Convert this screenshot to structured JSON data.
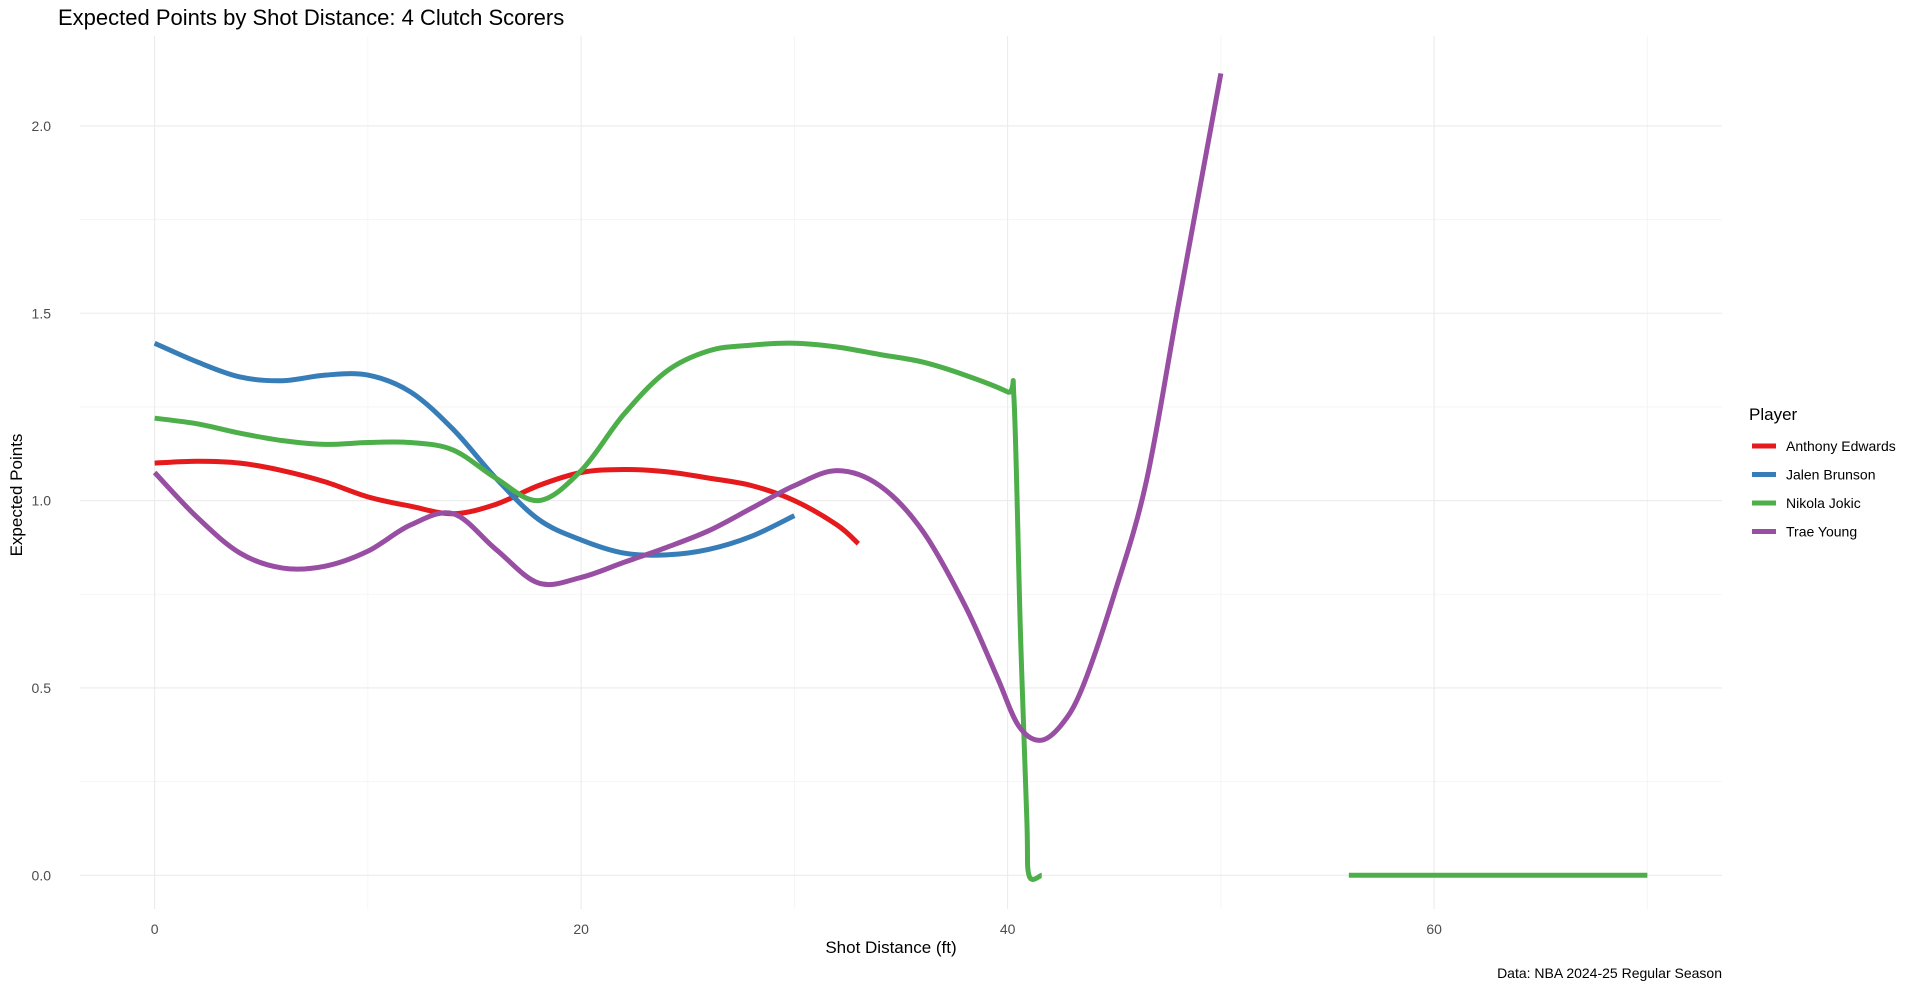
{
  "chart_data": {
    "type": "line",
    "title": "Expected Points by Shot Distance: 4 Clutch Scorers",
    "xlabel": "Shot Distance (ft)",
    "ylabel": "Expected Points",
    "caption": "Data: NBA 2024-25 Regular Season",
    "xlim": [
      -3.5,
      73.5
    ],
    "ylim": [
      -0.09,
      2.24
    ],
    "x_ticks": [
      0,
      20,
      40,
      60
    ],
    "y_ticks": [
      0.0,
      0.5,
      1.0,
      1.5,
      2.0
    ],
    "x_tick_labels": [
      "0",
      "20",
      "40",
      "60"
    ],
    "y_tick_labels": [
      "0.0",
      "0.5",
      "1.0",
      "1.5",
      "2.0"
    ],
    "grid": true,
    "legend": {
      "title": "Player",
      "position": "right"
    },
    "series": [
      {
        "name": "Anthony Edwards",
        "color": "#e41a1c",
        "segments": [
          {
            "x": [
              0,
              2,
              4,
              6,
              8,
              10,
              12,
              14,
              16,
              18,
              20,
              22,
              24,
              26,
              28,
              30,
              32,
              33
            ],
            "y": [
              1.1,
              1.105,
              1.1,
              1.08,
              1.05,
              1.01,
              0.985,
              0.965,
              0.99,
              1.04,
              1.075,
              1.083,
              1.077,
              1.06,
              1.04,
              1.0,
              0.935,
              0.885
            ]
          }
        ]
      },
      {
        "name": "Jalen Brunson",
        "color": "#377eb8",
        "segments": [
          {
            "x": [
              0,
              2,
              4,
              6,
              8,
              10,
              12,
              14,
              16,
              18,
              20,
              22,
              24,
              26,
              28,
              30
            ],
            "y": [
              1.42,
              1.37,
              1.33,
              1.32,
              1.335,
              1.335,
              1.29,
              1.19,
              1.06,
              0.95,
              0.895,
              0.86,
              0.855,
              0.87,
              0.905,
              0.96
            ]
          }
        ]
      },
      {
        "name": "Nikola Jokic",
        "color": "#4daf4a",
        "segments": [
          {
            "x": [
              0,
              2,
              4,
              6,
              8,
              10,
              12,
              14,
              16,
              18,
              20,
              22,
              24,
              26,
              28,
              30,
              32,
              34,
              36,
              38,
              40,
              40.3,
              40.6,
              40.9,
              41.0,
              41.6
            ],
            "y": [
              1.22,
              1.205,
              1.18,
              1.16,
              1.15,
              1.155,
              1.155,
              1.135,
              1.06,
              1.0,
              1.08,
              1.23,
              1.345,
              1.4,
              1.415,
              1.42,
              1.41,
              1.39,
              1.37,
              1.335,
              1.29,
              1.27,
              0.65,
              0.15,
              0.0,
              0.0
            ]
          },
          {
            "x": [
              56,
              60,
              65,
              70
            ],
            "y": [
              0.0,
              0.0,
              0.0,
              0.0
            ]
          }
        ]
      },
      {
        "name": "Trae Young",
        "color": "#984ea3",
        "segments": [
          {
            "x": [
              0,
              2,
              4,
              6,
              8,
              10,
              12,
              14,
              16,
              18,
              20,
              22,
              24,
              26,
              28,
              30,
              32,
              34,
              36,
              38,
              39.5,
              40.5,
              41.5,
              42.5,
              43.5,
              45,
              46.5,
              48,
              50
            ],
            "y": [
              1.075,
              0.955,
              0.86,
              0.82,
              0.825,
              0.865,
              0.935,
              0.965,
              0.87,
              0.78,
              0.795,
              0.835,
              0.875,
              0.92,
              0.98,
              1.04,
              1.08,
              1.04,
              0.92,
              0.72,
              0.53,
              0.4,
              0.36,
              0.4,
              0.5,
              0.75,
              1.05,
              1.52,
              2.14
            ]
          }
        ]
      }
    ]
  }
}
